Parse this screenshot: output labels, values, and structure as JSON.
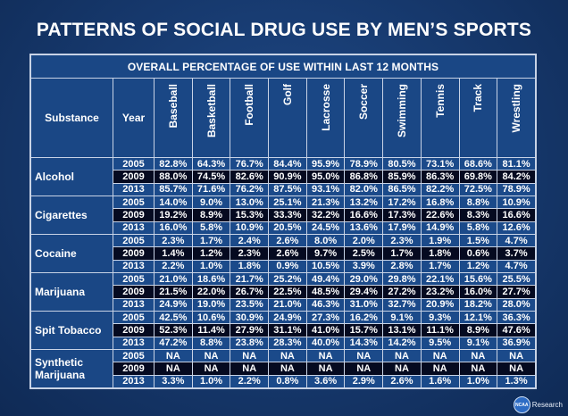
{
  "title": "PATTERNS OF SOCIAL DRUG USE BY MEN’S SPORTS",
  "subtitle": "OVERALL PERCENTAGE OF USE WITHIN LAST 12 MONTHS",
  "headers": {
    "substance": "Substance",
    "year": "Year",
    "sports": [
      "Baseball",
      "Basketball",
      "Football",
      "Golf",
      "Lacrosse",
      "Soccer",
      "Swimming",
      "Tennis",
      "Track",
      "Wrestling"
    ]
  },
  "groups": [
    {
      "name": "Alcohol",
      "rows": [
        {
          "year": "2005",
          "values": [
            "82.8%",
            "64.3%",
            "76.7%",
            "84.4%",
            "95.9%",
            "78.9%",
            "80.5%",
            "73.1%",
            "68.6%",
            "81.1%"
          ]
        },
        {
          "year": "2009",
          "values": [
            "88.0%",
            "74.5%",
            "82.6%",
            "90.9%",
            "95.0%",
            "86.8%",
            "85.9%",
            "86.3%",
            "69.8%",
            "84.2%"
          ]
        },
        {
          "year": "2013",
          "values": [
            "85.7%",
            "71.6%",
            "76.2%",
            "87.5%",
            "93.1%",
            "82.0%",
            "86.5%",
            "82.2%",
            "72.5%",
            "78.9%"
          ]
        }
      ]
    },
    {
      "name": "Cigarettes",
      "rows": [
        {
          "year": "2005",
          "values": [
            "14.0%",
            "9.0%",
            "13.0%",
            "25.1%",
            "21.3%",
            "13.2%",
            "17.2%",
            "16.8%",
            "8.8%",
            "10.9%"
          ]
        },
        {
          "year": "2009",
          "values": [
            "19.2%",
            "8.9%",
            "15.3%",
            "33.3%",
            "32.2%",
            "16.6%",
            "17.3%",
            "22.6%",
            "8.3%",
            "16.6%"
          ]
        },
        {
          "year": "2013",
          "values": [
            "16.0%",
            "5.8%",
            "10.9%",
            "20.5%",
            "24.5%",
            "13.6%",
            "17.9%",
            "14.9%",
            "5.8%",
            "12.6%"
          ]
        }
      ]
    },
    {
      "name": "Cocaine",
      "rows": [
        {
          "year": "2005",
          "values": [
            "2.3%",
            "1.7%",
            "2.4%",
            "2.6%",
            "8.0%",
            "2.0%",
            "2.3%",
            "1.9%",
            "1.5%",
            "4.7%"
          ]
        },
        {
          "year": "2009",
          "values": [
            "1.4%",
            "1.2%",
            "2.3%",
            "2.6%",
            "9.7%",
            "2.5%",
            "1.7%",
            "1.8%",
            "0.6%",
            "3.7%"
          ]
        },
        {
          "year": "2013",
          "values": [
            "2.2%",
            "1.0%",
            "1.8%",
            "0.9%",
            "10.5%",
            "3.9%",
            "2.8%",
            "1.7%",
            "1.2%",
            "4.7%"
          ]
        }
      ]
    },
    {
      "name": "Marijuana",
      "rows": [
        {
          "year": "2005",
          "values": [
            "21.0%",
            "18.6%",
            "21.7%",
            "25.2%",
            "49.4%",
            "29.0%",
            "29.8%",
            "22.1%",
            "15.6%",
            "25.5%"
          ]
        },
        {
          "year": "2009",
          "values": [
            "21.5%",
            "22.0%",
            "26.7%",
            "22.5%",
            "48.5%",
            "29.4%",
            "27.2%",
            "23.2%",
            "16.0%",
            "27.7%"
          ]
        },
        {
          "year": "2013",
          "values": [
            "24.9%",
            "19.0%",
            "23.5%",
            "21.0%",
            "46.3%",
            "31.0%",
            "32.7%",
            "20.9%",
            "18.2%",
            "28.0%"
          ]
        }
      ]
    },
    {
      "name": "Spit Tobacco",
      "rows": [
        {
          "year": "2005",
          "values": [
            "42.5%",
            "10.6%",
            "30.9%",
            "24.9%",
            "27.3%",
            "16.2%",
            "9.1%",
            "9.3%",
            "12.1%",
            "36.3%"
          ]
        },
        {
          "year": "2009",
          "values": [
            "52.3%",
            "11.4%",
            "27.9%",
            "31.1%",
            "41.0%",
            "15.7%",
            "13.1%",
            "11.1%",
            "8.9%",
            "47.6%"
          ]
        },
        {
          "year": "2013",
          "values": [
            "47.2%",
            "8.8%",
            "23.8%",
            "28.3%",
            "40.0%",
            "14.3%",
            "14.2%",
            "9.5%",
            "9.1%",
            "36.9%"
          ]
        }
      ]
    },
    {
      "name": "Synthetic Marijuana",
      "rows": [
        {
          "year": "2005",
          "values": [
            "NA",
            "NA",
            "NA",
            "NA",
            "NA",
            "NA",
            "NA",
            "NA",
            "NA",
            "NA"
          ]
        },
        {
          "year": "2009",
          "values": [
            "NA",
            "NA",
            "NA",
            "NA",
            "NA",
            "NA",
            "NA",
            "NA",
            "NA",
            "NA"
          ]
        },
        {
          "year": "2013",
          "values": [
            "3.3%",
            "1.0%",
            "2.2%",
            "0.8%",
            "3.6%",
            "2.9%",
            "2.6%",
            "1.6%",
            "1.0%",
            "1.3%"
          ]
        }
      ]
    }
  ],
  "footer": {
    "logo_text": "NCAA",
    "label": "Research"
  },
  "colors": {
    "header_blue": "#1a4785",
    "row_blue": "#1b4a8a",
    "row_dark": "#050a20"
  }
}
